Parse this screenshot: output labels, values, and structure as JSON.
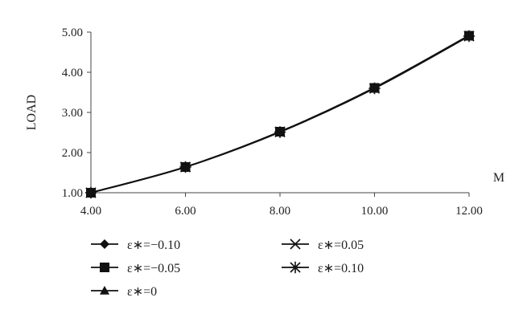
{
  "chart_data": {
    "type": "line",
    "xlabel": "M",
    "ylabel": "LOAD",
    "x": [
      4,
      6,
      8,
      10,
      12
    ],
    "x_tick_labels": [
      "4.00",
      "6.00",
      "8.00",
      "10.00",
      "12.00"
    ],
    "y_tick_labels": [
      "1.00",
      "2.00",
      "3.00",
      "4.00",
      "5.00"
    ],
    "xlim": [
      4,
      12
    ],
    "ylim": [
      1,
      5
    ],
    "grid": false,
    "legend_position": "bottom",
    "series": [
      {
        "name": "ε∗=−0.10",
        "marker": "diamond",
        "values": [
          1.0,
          1.64,
          2.52,
          3.62,
          4.92
        ]
      },
      {
        "name": "ε∗=−0.05",
        "marker": "square",
        "values": [
          1.0,
          1.64,
          2.52,
          3.61,
          4.91
        ]
      },
      {
        "name": "ε∗=0",
        "marker": "triangle",
        "values": [
          1.0,
          1.64,
          2.52,
          3.61,
          4.91
        ]
      },
      {
        "name": "ε∗=0.05",
        "marker": "x",
        "values": [
          1.0,
          1.64,
          2.52,
          3.6,
          4.9
        ]
      },
      {
        "name": "ε∗=0.10",
        "marker": "star",
        "values": [
          1.0,
          1.64,
          2.51,
          3.6,
          4.9
        ]
      }
    ]
  }
}
